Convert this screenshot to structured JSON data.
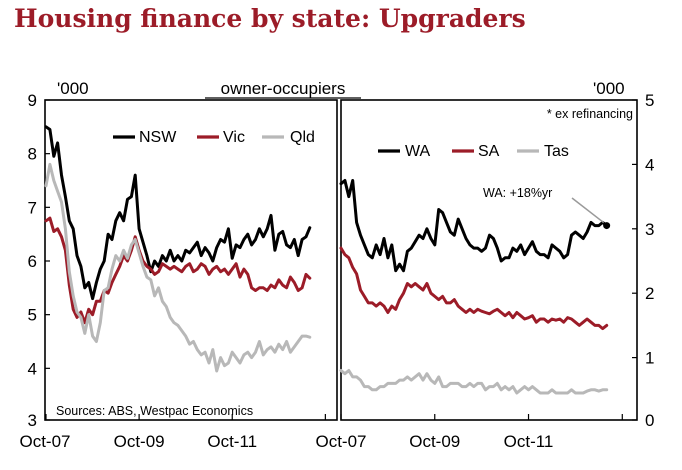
{
  "title": "Housing finance by state: Upgraders",
  "chart_data": [
    {
      "type": "line",
      "panel": "left",
      "header": "owner-occupiers",
      "ylabel": "'000",
      "ylim": [
        3,
        9
      ],
      "yticks": [
        "3",
        "4",
        "5",
        "6",
        "7",
        "8",
        "9"
      ],
      "xlim": [
        0,
        75
      ],
      "x_tick_labels": [
        {
          "x": 0,
          "label": "Oct-07"
        },
        {
          "x": 24,
          "label": "Oct-09"
        },
        {
          "x": 48,
          "label": "Oct-11"
        },
        {
          "x": 72,
          "label": ""
        }
      ],
      "legend": [
        "NSW",
        "Vic",
        "Qld"
      ],
      "source_note": "Sources: ABS, Westpac Economics",
      "series": [
        {
          "name": "NSW",
          "color": "#000000",
          "x": [
            0,
            1,
            2,
            3,
            4,
            5,
            6,
            7,
            8,
            9,
            10,
            11,
            12,
            13,
            14,
            15,
            16,
            17,
            18,
            19,
            20,
            21,
            22,
            23,
            24,
            25,
            26,
            27,
            28,
            29,
            30,
            31,
            32,
            33,
            34,
            35,
            36,
            37,
            38,
            39,
            40,
            41,
            42,
            43,
            44,
            45,
            46,
            47,
            48,
            49,
            50,
            51,
            52,
            53,
            54,
            55,
            56,
            57,
            58,
            59,
            60,
            61,
            62,
            63,
            64,
            65,
            66,
            67,
            68
          ],
          "values": [
            8.5,
            8.45,
            7.95,
            8.2,
            7.6,
            7.2,
            6.75,
            6.6,
            6.1,
            5.9,
            5.5,
            5.6,
            5.3,
            5.6,
            5.85,
            6.0,
            6.5,
            6.4,
            6.75,
            6.9,
            6.75,
            7.15,
            7.2,
            7.6,
            6.6,
            6.35,
            6.1,
            5.8,
            6.0,
            5.9,
            6.1,
            6.0,
            6.2,
            6.0,
            6.1,
            6.0,
            6.2,
            6.15,
            6.25,
            6.35,
            6.1,
            6.25,
            6.15,
            6.0,
            6.25,
            6.4,
            6.35,
            6.6,
            6.05,
            6.3,
            6.25,
            6.4,
            6.5,
            6.3,
            6.4,
            6.6,
            6.45,
            6.6,
            6.85,
            6.2,
            6.5,
            6.55,
            6.3,
            6.25,
            6.4,
            6.1,
            6.4,
            6.45,
            6.62
          ]
        },
        {
          "name": "Vic",
          "color": "#9c1c28",
          "x": [
            0,
            1,
            2,
            3,
            4,
            5,
            6,
            7,
            8,
            9,
            10,
            11,
            12,
            13,
            14,
            15,
            16,
            17,
            18,
            19,
            20,
            21,
            22,
            23,
            24,
            25,
            26,
            27,
            28,
            29,
            30,
            31,
            32,
            33,
            34,
            35,
            36,
            37,
            38,
            39,
            40,
            41,
            42,
            43,
            44,
            45,
            46,
            47,
            48,
            49,
            50,
            51,
            52,
            53,
            54,
            55,
            56,
            57,
            58,
            59,
            60,
            61,
            62,
            63,
            64,
            65,
            66,
            67,
            68
          ],
          "values": [
            6.75,
            6.8,
            6.55,
            6.6,
            6.45,
            6.2,
            5.55,
            5.1,
            4.95,
            5.05,
            4.85,
            5.1,
            5.0,
            5.25,
            5.25,
            5.45,
            5.4,
            5.6,
            5.75,
            5.9,
            6.1,
            6.0,
            6.2,
            6.45,
            6.2,
            6.0,
            5.9,
            5.85,
            5.75,
            5.8,
            5.95,
            5.9,
            5.85,
            5.9,
            5.85,
            5.8,
            5.9,
            5.95,
            5.8,
            5.85,
            5.95,
            5.9,
            5.75,
            5.85,
            5.9,
            5.8,
            5.85,
            5.75,
            5.85,
            5.95,
            5.7,
            5.85,
            5.75,
            5.5,
            5.45,
            5.5,
            5.5,
            5.45,
            5.55,
            5.5,
            5.65,
            5.55,
            5.5,
            5.7,
            5.6,
            5.45,
            5.5,
            5.75,
            5.68
          ]
        },
        {
          "name": "Qld",
          "color": "#b8b8b8",
          "x": [
            0,
            1,
            2,
            3,
            4,
            5,
            6,
            7,
            8,
            9,
            10,
            11,
            12,
            13,
            14,
            15,
            16,
            17,
            18,
            19,
            20,
            21,
            22,
            23,
            24,
            25,
            26,
            27,
            28,
            29,
            30,
            31,
            32,
            33,
            34,
            35,
            36,
            37,
            38,
            39,
            40,
            41,
            42,
            43,
            44,
            45,
            46,
            47,
            48,
            49,
            50,
            51,
            52,
            53,
            54,
            55,
            56,
            57,
            58,
            59,
            60,
            61,
            62,
            63,
            64,
            65,
            66,
            67,
            68
          ],
          "values": [
            7.4,
            7.8,
            7.5,
            7.3,
            7.1,
            6.6,
            5.8,
            5.35,
            5.05,
            4.95,
            4.65,
            5.0,
            4.6,
            4.5,
            4.85,
            5.45,
            5.5,
            5.85,
            6.1,
            6.0,
            6.2,
            6.05,
            6.3,
            6.4,
            6.15,
            5.9,
            5.7,
            5.65,
            5.35,
            5.5,
            5.25,
            5.15,
            4.95,
            4.85,
            4.8,
            4.7,
            4.6,
            4.45,
            4.5,
            4.35,
            4.25,
            4.3,
            4.1,
            4.35,
            3.95,
            4.2,
            4.05,
            4.1,
            4.3,
            4.2,
            4.1,
            4.25,
            4.3,
            4.2,
            4.3,
            4.5,
            4.25,
            4.35,
            4.4,
            4.3,
            4.45,
            4.35,
            4.5,
            4.3,
            4.4,
            4.5,
            4.6,
            4.6,
            4.58
          ]
        }
      ]
    },
    {
      "type": "line",
      "panel": "right",
      "ylabel": "'000",
      "ylim": [
        0,
        5
      ],
      "yticks": [
        "0",
        "1",
        "2",
        "3",
        "4",
        "5"
      ],
      "xlim": [
        0,
        75
      ],
      "x_tick_labels": [
        {
          "x": 0,
          "label": "Oct-07"
        },
        {
          "x": 24,
          "label": "Oct-09"
        },
        {
          "x": 48,
          "label": "Oct-11"
        },
        {
          "x": 72,
          "label": ""
        }
      ],
      "legend": [
        "WA",
        "SA",
        "Tas"
      ],
      "note": "* ex refinancing",
      "annotation": "WA: +18%yr",
      "series": [
        {
          "name": "WA",
          "color": "#000000",
          "x": [
            0,
            1,
            2,
            3,
            4,
            5,
            6,
            7,
            8,
            9,
            10,
            11,
            12,
            13,
            14,
            15,
            16,
            17,
            18,
            19,
            20,
            21,
            22,
            23,
            24,
            25,
            26,
            27,
            28,
            29,
            30,
            31,
            32,
            33,
            34,
            35,
            36,
            37,
            38,
            39,
            40,
            41,
            42,
            43,
            44,
            45,
            46,
            47,
            48,
            49,
            50,
            51,
            52,
            53,
            54,
            55,
            56,
            57,
            58,
            59,
            60,
            61,
            62,
            63,
            64,
            65,
            66,
            67,
            68
          ],
          "values": [
            3.7,
            3.75,
            3.5,
            3.75,
            3.1,
            2.9,
            2.75,
            2.6,
            2.55,
            2.75,
            2.6,
            2.85,
            2.55,
            2.75,
            2.35,
            2.45,
            2.35,
            2.65,
            2.7,
            2.8,
            2.9,
            2.85,
            3.0,
            2.85,
            2.75,
            3.3,
            3.25,
            3.1,
            2.95,
            2.9,
            3.15,
            3.0,
            2.85,
            2.75,
            2.7,
            2.7,
            2.65,
            2.7,
            2.9,
            2.85,
            2.7,
            2.5,
            2.55,
            2.55,
            2.7,
            2.65,
            2.75,
            2.6,
            2.7,
            2.8,
            2.65,
            2.6,
            2.6,
            2.55,
            2.75,
            2.7,
            2.65,
            2.55,
            2.6,
            2.9,
            2.95,
            2.9,
            2.85,
            2.95,
            3.1,
            3.05,
            3.05,
            3.1,
            3.05
          ]
        },
        {
          "name": "SA",
          "color": "#9c1c28",
          "x": [
            0,
            1,
            2,
            3,
            4,
            5,
            6,
            7,
            8,
            9,
            10,
            11,
            12,
            13,
            14,
            15,
            16,
            17,
            18,
            19,
            20,
            21,
            22,
            23,
            24,
            25,
            26,
            27,
            28,
            29,
            30,
            31,
            32,
            33,
            34,
            35,
            36,
            37,
            38,
            39,
            40,
            41,
            42,
            43,
            44,
            45,
            46,
            47,
            48,
            49,
            50,
            51,
            52,
            53,
            54,
            55,
            56,
            57,
            58,
            59,
            60,
            61,
            62,
            63,
            64,
            65,
            66,
            67,
            68
          ],
          "values": [
            2.7,
            2.6,
            2.55,
            2.4,
            2.3,
            2.05,
            1.95,
            1.85,
            1.85,
            1.8,
            1.85,
            1.8,
            1.7,
            1.8,
            1.75,
            1.9,
            2.0,
            2.15,
            2.1,
            2.15,
            2.1,
            2.05,
            2.15,
            2.0,
            1.95,
            1.9,
            1.95,
            1.85,
            1.85,
            1.9,
            1.8,
            1.75,
            1.7,
            1.75,
            1.7,
            1.75,
            1.72,
            1.7,
            1.68,
            1.72,
            1.75,
            1.7,
            1.65,
            1.7,
            1.62,
            1.7,
            1.65,
            1.6,
            1.62,
            1.65,
            1.55,
            1.6,
            1.6,
            1.55,
            1.6,
            1.58,
            1.6,
            1.55,
            1.62,
            1.6,
            1.55,
            1.5,
            1.55,
            1.6,
            1.55,
            1.5,
            1.5,
            1.45,
            1.5
          ]
        },
        {
          "name": "Tas",
          "color": "#b8b8b8",
          "x": [
            0,
            1,
            2,
            3,
            4,
            5,
            6,
            7,
            8,
            9,
            10,
            11,
            12,
            13,
            14,
            15,
            16,
            17,
            18,
            19,
            20,
            21,
            22,
            23,
            24,
            25,
            26,
            27,
            28,
            29,
            30,
            31,
            32,
            33,
            34,
            35,
            36,
            37,
            38,
            39,
            40,
            41,
            42,
            43,
            44,
            45,
            46,
            47,
            48,
            49,
            50,
            51,
            52,
            53,
            54,
            55,
            56,
            57,
            58,
            59,
            60,
            61,
            62,
            63,
            64,
            65,
            66,
            67,
            68
          ],
          "values": [
            0.8,
            0.75,
            0.8,
            0.7,
            0.7,
            0.65,
            0.55,
            0.55,
            0.5,
            0.5,
            0.55,
            0.55,
            0.6,
            0.6,
            0.6,
            0.65,
            0.65,
            0.7,
            0.65,
            0.7,
            0.75,
            0.65,
            0.75,
            0.65,
            0.6,
            0.7,
            0.55,
            0.55,
            0.6,
            0.6,
            0.6,
            0.55,
            0.55,
            0.6,
            0.55,
            0.6,
            0.6,
            0.5,
            0.55,
            0.55,
            0.6,
            0.5,
            0.55,
            0.5,
            0.55,
            0.45,
            0.5,
            0.55,
            0.5,
            0.55,
            0.5,
            0.45,
            0.45,
            0.45,
            0.5,
            0.45,
            0.45,
            0.45,
            0.45,
            0.5,
            0.45,
            0.45,
            0.45,
            0.48,
            0.5,
            0.5,
            0.48,
            0.5,
            0.5
          ]
        }
      ]
    }
  ]
}
